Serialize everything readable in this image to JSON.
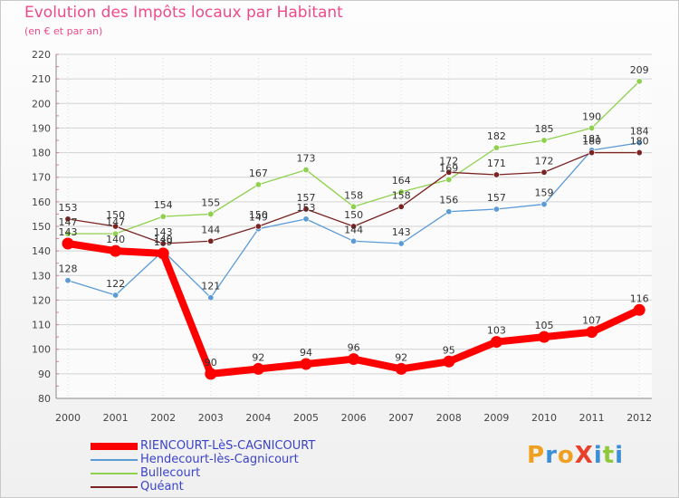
{
  "title": "Evolution des Impôts locaux par Habitant",
  "subtitle": "(en € et par an)",
  "logo": "ProXiti",
  "chart_data": {
    "type": "line",
    "title": "Evolution des Impôts locaux par Habitant",
    "ylabel": "(en € et par an)",
    "xlabel": "",
    "x": [
      "2000",
      "2001",
      "2002",
      "2003",
      "2004",
      "2005",
      "2006",
      "2007",
      "2008",
      "2009",
      "2010",
      "2011",
      "2012"
    ],
    "ylim": [
      80,
      220
    ],
    "yticks": [
      80,
      90,
      100,
      110,
      120,
      130,
      140,
      150,
      160,
      170,
      180,
      190,
      200,
      210,
      220
    ],
    "series": [
      {
        "name": "RIENCOURT-LèS-CAGNICOURT",
        "color": "#ff0000",
        "values": [
          143,
          140,
          139,
          90,
          92,
          94,
          96,
          92,
          95,
          103,
          105,
          107,
          116
        ]
      },
      {
        "name": "Hendecourt-lès-Cagnicourt",
        "color": "#5b9bd5",
        "values": [
          128,
          122,
          140,
          121,
          149,
          153,
          144,
          143,
          156,
          157,
          159,
          181,
          184
        ]
      },
      {
        "name": "Bullecourt",
        "color": "#8fd14f",
        "values": [
          147,
          147,
          154,
          155,
          167,
          173,
          158,
          164,
          169,
          182,
          185,
          190,
          209
        ]
      },
      {
        "name": "Quéant",
        "color": "#7b2323",
        "values": [
          153,
          150,
          143,
          144,
          150,
          157,
          150,
          158,
          172,
          171,
          172,
          180,
          180
        ]
      }
    ],
    "data_labels": [
      [
        "143",
        "140",
        "139",
        "90",
        "92",
        "94",
        "96",
        "92",
        "95",
        "103",
        "105",
        "107",
        "116"
      ],
      [
        "128",
        "122",
        "140",
        "121",
        "149",
        "153",
        "144",
        "143",
        "156",
        "157",
        "159",
        "181",
        "184"
      ],
      [
        "147",
        "147",
        "154",
        "155",
        "167",
        "173",
        "158",
        "164",
        "169",
        "182",
        "185",
        "190",
        "209"
      ],
      [
        "153",
        "150",
        "143",
        "144",
        "150",
        "157",
        "150",
        "158",
        "172",
        "171",
        "172",
        "180",
        "180"
      ]
    ]
  }
}
